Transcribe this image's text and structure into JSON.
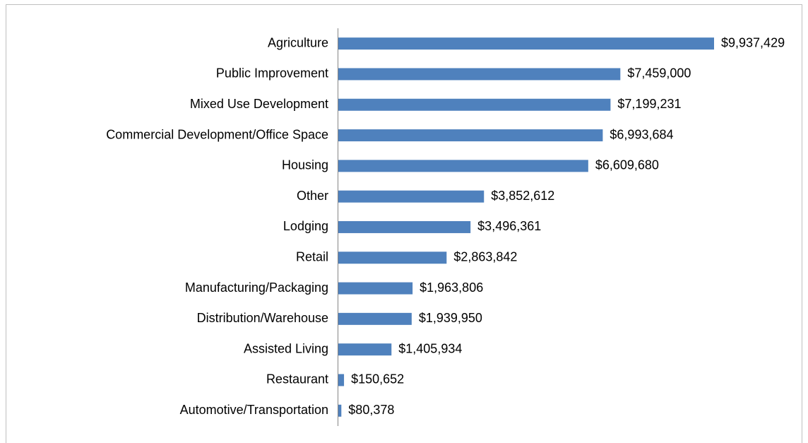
{
  "chart_data": {
    "type": "bar",
    "orientation": "horizontal",
    "color": "#4f81bd",
    "categories": [
      "Agriculture",
      "Public Improvement",
      "Mixed Use Development",
      "Commercial Development/Office Space",
      "Housing",
      "Other",
      "Lodging",
      "Retail",
      "Manufacturing/Packaging",
      "Distribution/Warehouse",
      "Assisted Living",
      "Restaurant",
      "Automotive/Transportation"
    ],
    "values": [
      9937429,
      7459000,
      7199231,
      6993684,
      6609680,
      3852612,
      3496361,
      2863842,
      1963806,
      1939950,
      1405934,
      150652,
      80378
    ],
    "value_labels": [
      "$9,937,429",
      "$7,459,000",
      "$7,199,231",
      "$6,993,684",
      "$6,609,680",
      "$3,852,612",
      "$3,496,361",
      "$2,863,842",
      "$1,963,806",
      "$1,939,950",
      "$1,405,934",
      "$150,652",
      "$80,378"
    ]
  }
}
